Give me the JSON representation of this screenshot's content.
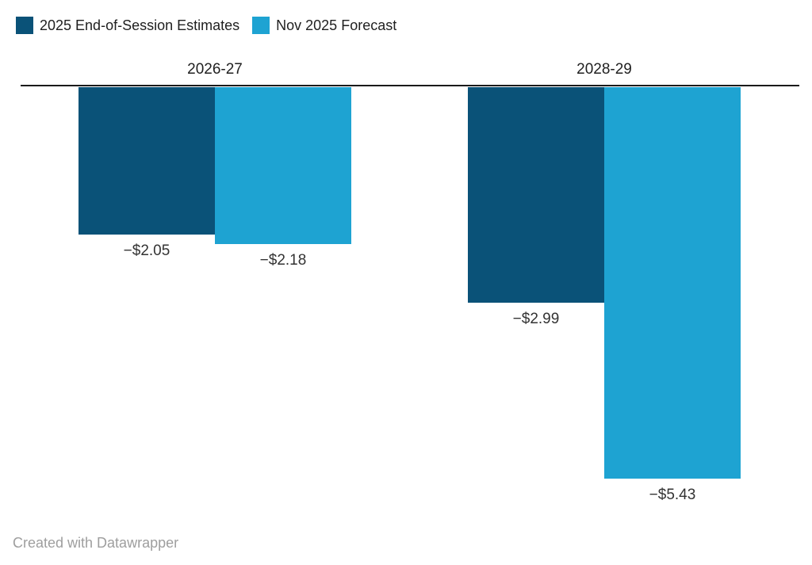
{
  "legend": {
    "position": "top-left",
    "items": [
      {
        "label": "2025 End-of-Session Estimates",
        "color": "#0a5278"
      },
      {
        "label": "Nov 2025 Forecast",
        "color": "#1ea3d2"
      }
    ]
  },
  "chart_data": {
    "type": "bar",
    "orientation": "vertical",
    "baseline": 0,
    "ylim": [
      -5.43,
      0
    ],
    "grid": false,
    "categories": [
      "2026-27",
      "2028-29"
    ],
    "series": [
      {
        "name": "2025 End-of-Session Estimates",
        "color": "#0a5278",
        "values": [
          -2.05,
          -2.99
        ],
        "labels": [
          "−$2.05",
          "−$2.99"
        ]
      },
      {
        "name": "Nov 2025 Forecast",
        "color": "#1ea3d2",
        "values": [
          -2.18,
          -5.43
        ],
        "labels": [
          "−$2.18",
          "−$5.43"
        ]
      }
    ]
  },
  "footer": {
    "credit": "Created with Datawrapper"
  }
}
